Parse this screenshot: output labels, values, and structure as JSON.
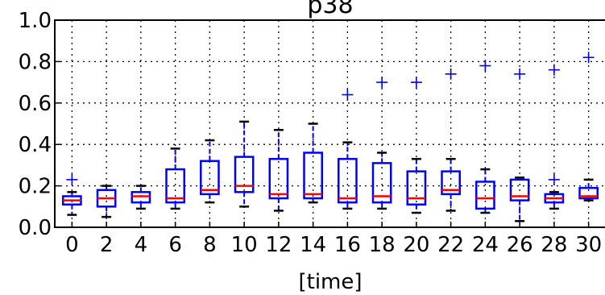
{
  "chart_data": {
    "type": "box",
    "title": "p38",
    "xlabel": "[time]",
    "ylabel": "",
    "ylim": [
      0.0,
      1.0
    ],
    "yticks": [
      "0.0",
      "0.2",
      "0.4",
      "0.6",
      "0.8",
      "1.0"
    ],
    "grid": true,
    "colors": {
      "box": "#0000ff",
      "median": "#ff0000",
      "whisker": "#000000",
      "flier": "#0000ff"
    },
    "categories": [
      "0",
      "2",
      "4",
      "6",
      "8",
      "10",
      "12",
      "14",
      "16",
      "18",
      "20",
      "22",
      "24",
      "26",
      "28",
      "30"
    ],
    "boxes": [
      {
        "x": "0",
        "whislo": 0.06,
        "q1": 0.11,
        "med": 0.13,
        "q3": 0.15,
        "whishi": 0.17,
        "fliers": [
          0.23
        ]
      },
      {
        "x": "2",
        "whislo": 0.05,
        "q1": 0.1,
        "med": 0.14,
        "q3": 0.18,
        "whishi": 0.2,
        "fliers": []
      },
      {
        "x": "4",
        "whislo": 0.09,
        "q1": 0.12,
        "med": 0.15,
        "q3": 0.17,
        "whishi": 0.2,
        "fliers": []
      },
      {
        "x": "6",
        "whislo": 0.09,
        "q1": 0.12,
        "med": 0.14,
        "q3": 0.28,
        "whishi": 0.38,
        "fliers": []
      },
      {
        "x": "8",
        "whislo": 0.12,
        "q1": 0.16,
        "med": 0.18,
        "q3": 0.32,
        "whishi": 0.42,
        "fliers": []
      },
      {
        "x": "10",
        "whislo": 0.1,
        "q1": 0.17,
        "med": 0.2,
        "q3": 0.34,
        "whishi": 0.51,
        "fliers": []
      },
      {
        "x": "12",
        "whislo": 0.08,
        "q1": 0.14,
        "med": 0.16,
        "q3": 0.33,
        "whishi": 0.47,
        "fliers": []
      },
      {
        "x": "14",
        "whislo": 0.12,
        "q1": 0.14,
        "med": 0.16,
        "q3": 0.36,
        "whishi": 0.5,
        "fliers": []
      },
      {
        "x": "16",
        "whislo": 0.09,
        "q1": 0.12,
        "med": 0.14,
        "q3": 0.33,
        "whishi": 0.41,
        "fliers": [
          0.64
        ]
      },
      {
        "x": "18",
        "whislo": 0.09,
        "q1": 0.12,
        "med": 0.15,
        "q3": 0.31,
        "whishi": 0.36,
        "fliers": [
          0.7
        ]
      },
      {
        "x": "20",
        "whislo": 0.07,
        "q1": 0.11,
        "med": 0.14,
        "q3": 0.27,
        "whishi": 0.33,
        "fliers": [
          0.7
        ]
      },
      {
        "x": "22",
        "whislo": 0.08,
        "q1": 0.16,
        "med": 0.18,
        "q3": 0.27,
        "whishi": 0.33,
        "fliers": [
          0.74
        ]
      },
      {
        "x": "24",
        "whislo": 0.07,
        "q1": 0.09,
        "med": 0.14,
        "q3": 0.22,
        "whishi": 0.28,
        "fliers": [
          0.78
        ]
      },
      {
        "x": "26",
        "whislo": 0.03,
        "q1": 0.13,
        "med": 0.15,
        "q3": 0.23,
        "whishi": 0.24,
        "fliers": [
          0.74
        ]
      },
      {
        "x": "28",
        "whislo": 0.09,
        "q1": 0.12,
        "med": 0.14,
        "q3": 0.16,
        "whishi": 0.17,
        "fliers": [
          0.23,
          0.76
        ]
      },
      {
        "x": "30",
        "whislo": 0.13,
        "q1": 0.14,
        "med": 0.15,
        "q3": 0.19,
        "whishi": 0.23,
        "fliers": [
          0.82
        ]
      }
    ]
  }
}
